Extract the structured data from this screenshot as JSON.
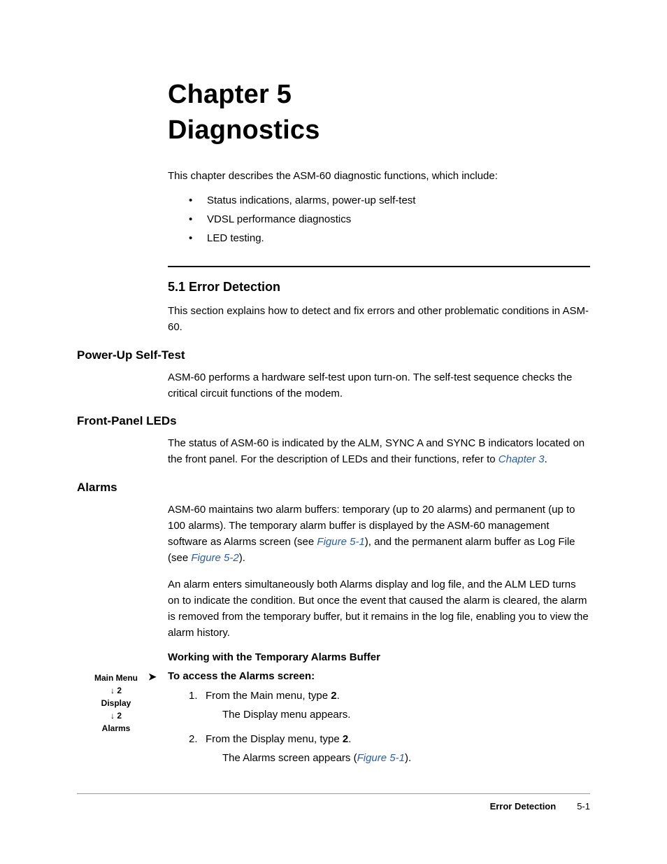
{
  "chapter": {
    "title_line1": "Chapter 5",
    "title_line2": "Diagnostics",
    "intro": "This chapter describes the ASM-60 diagnostic functions, which include:",
    "bullets": [
      "Status indications, alarms, power-up self-test",
      "VDSL performance diagnostics",
      "LED testing."
    ]
  },
  "section": {
    "number_heading": "5.1  Error Detection",
    "intro": "This section explains how to detect and fix errors and other problematic conditions in ASM-60."
  },
  "powerup": {
    "heading": "Power-Up Self-Test",
    "text": "ASM-60 performs a hardware self-test upon turn-on. The self-test sequence checks the critical circuit functions of the modem."
  },
  "leds": {
    "heading": "Front-Panel LEDs",
    "text_pre": "The status of ASM-60 is indicated by the ALM, SYNC A and SYNC B indicators located on the front panel. For the description of LEDs and their functions, refer to ",
    "xref": "Chapter 3",
    "text_post": "."
  },
  "alarms": {
    "heading": "Alarms",
    "para1_a": "ASM-60 maintains two alarm buffers: temporary (up to 20 alarms) and permanent (up to 100 alarms). The temporary alarm buffer is displayed by the ASM-60 management software as Alarms screen (see ",
    "para1_xref1": "Figure 5-1",
    "para1_b": "), and the permanent alarm buffer as Log File (see ",
    "para1_xref2": "Figure 5-2",
    "para1_c": ").",
    "para2": "An alarm enters simultaneously both Alarms display and log file, and the ALM LED turns on to indicate the condition. But once the event that caused the alarm is cleared, the alarm is removed from the temporary buffer, but it remains in the log file, enabling you to view the alarm history.",
    "sub_heading": "Working with the Temporary Alarms Buffer"
  },
  "margin_nav": {
    "l1": "Main Menu",
    "l2": "↓ 2",
    "l3": "Display",
    "l4": "↓ 2",
    "l5": "Alarms"
  },
  "procedure": {
    "title": "To access the Alarms screen:",
    "step1_a": "From the Main menu, type ",
    "step1_b": "2",
    "step1_c": ".",
    "step1_result": "The Display menu appears.",
    "step2_a": "From the Display menu, type ",
    "step2_b": "2",
    "step2_c": ".",
    "step2_result_a": "The Alarms screen appears (",
    "step2_result_xref": "Figure 5-1",
    "step2_result_b": ")."
  },
  "footer": {
    "section_label": "Error Detection",
    "page_number": "5-1"
  },
  "colors": {
    "text": "#000000",
    "link": "#2a5db0",
    "rule_light": "#9b9b9b",
    "background": "#ffffff"
  },
  "typography": {
    "title_fontsize_pt": 29,
    "section_heading_pt": 14,
    "subheading_pt": 13,
    "body_pt": 11,
    "margin_nav_pt": 9,
    "footer_pt": 10,
    "font_family": "Segoe UI / Lucida Sans"
  }
}
